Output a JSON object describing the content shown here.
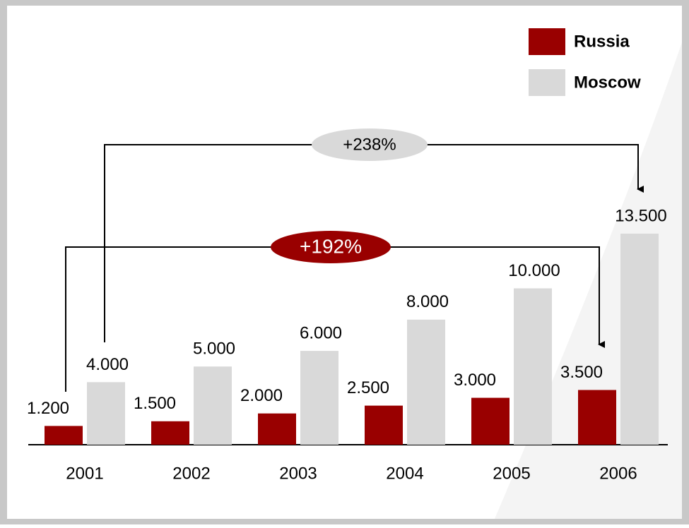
{
  "chart_data": {
    "type": "bar",
    "categories": [
      "2001",
      "2002",
      "2003",
      "2004",
      "2005",
      "2006"
    ],
    "series": [
      {
        "name": "Russia",
        "color": "#990000",
        "values": [
          1200,
          1500,
          2000,
          2500,
          3000,
          3500
        ],
        "value_labels": [
          "1.200",
          "1.500",
          "2.000",
          "2.500",
          "3.000",
          "3.500"
        ]
      },
      {
        "name": "Moscow",
        "color": "#d9d9d9",
        "values": [
          4000,
          5000,
          6000,
          8000,
          10000,
          13500
        ],
        "value_labels": [
          "4.000",
          "5.000",
          "6.000",
          "8.000",
          "10.000",
          "13.500"
        ]
      }
    ],
    "annotations": [
      "+238%",
      "+192%"
    ],
    "legend": "top-right"
  }
}
